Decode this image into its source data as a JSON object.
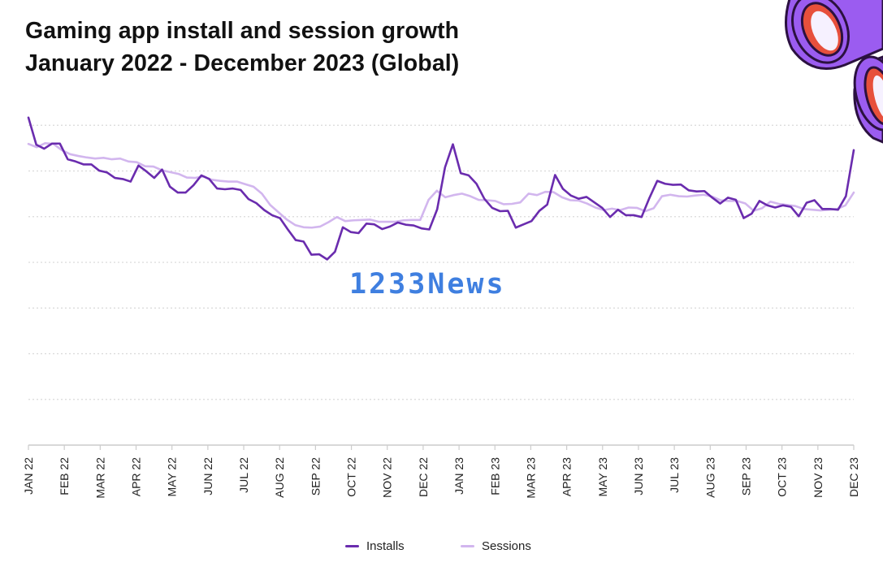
{
  "title": {
    "line1": "Gaming app install and session growth",
    "line2": "January 2022 - December 2023 (Global)"
  },
  "watermark": "1233News",
  "colors": {
    "installs": "#6a2cae",
    "sessions": "#d2b6ee",
    "grid": "#d9d9d9",
    "axis": "#cccccc",
    "decor_purple": "#9b5cf0",
    "decor_red": "#e7503c"
  },
  "legend": [
    {
      "label": "Installs",
      "color": "#6a2cae"
    },
    {
      "label": "Sessions",
      "color": "#d2b6ee"
    }
  ],
  "chart_data": {
    "type": "line",
    "title": "Gaming app install and session growth January 2022 - December 2023 (Global)",
    "xlabel": "",
    "ylabel": "",
    "ylim": [
      0,
      100
    ],
    "grid": true,
    "legend_position": "bottom",
    "x_ticks": [
      "JAN 22",
      "FEB 22",
      "MAR 22",
      "APR 22",
      "MAY 22",
      "JUN 22",
      "JUL 22",
      "AUG 22",
      "SEP 22",
      "OCT 22",
      "NOV 22",
      "DEC 22",
      "JAN 23",
      "FEB 23",
      "MAR 23",
      "APR 23",
      "MAY 23",
      "JUN 23",
      "JUL 23",
      "AUG 23",
      "SEP 23",
      "OCT 23",
      "NOV 23",
      "DEC 23"
    ],
    "series": [
      {
        "name": "Installs",
        "values": [
          89.6,
          82.2,
          81.1,
          82.5,
          82.5,
          78.2,
          77.6,
          76.8,
          76.8,
          75.1,
          74.6,
          73.1,
          72.8,
          72.1,
          76.5,
          74.9,
          73.1,
          75.4,
          70.7,
          69.1,
          69.1,
          71.1,
          73.8,
          72.8,
          70.2,
          70.0,
          70.2,
          69.8,
          67.3,
          66.2,
          64.3,
          62.9,
          62.1,
          59.0,
          56.1,
          55.7,
          52.1,
          52.2,
          50.8,
          52.9,
          59.6,
          58.3,
          58.0,
          60.6,
          60.4,
          59.1,
          59.8,
          60.9,
          60.3,
          60.1,
          59.3,
          59.0,
          64.5,
          76.0,
          82.3,
          74.4,
          73.8,
          71.5,
          67.4,
          64.9,
          64.0,
          64.1,
          59.5,
          60.4,
          61.3,
          64.1,
          65.8,
          73.9,
          70.1,
          68.3,
          67.4,
          67.9,
          66.4,
          64.9,
          62.4,
          64.4,
          62.9,
          62.9,
          62.4,
          67.6,
          72.3,
          71.5,
          71.2,
          71.3,
          69.7,
          69.4,
          69.5,
          67.7,
          66.1,
          67.7,
          67.1,
          62.1,
          63.3,
          66.8,
          65.6,
          65.0,
          65.6,
          65.2,
          62.6,
          66.3,
          67.0,
          64.6,
          64.6,
          64.4,
          68.1,
          80.7
        ]
      },
      {
        "name": "Sessions",
        "values": [
          82.4,
          81.5,
          82.6,
          82.4,
          80.7,
          79.6,
          79.1,
          78.7,
          78.4,
          78.6,
          78.2,
          78.4,
          77.6,
          77.4,
          76.3,
          76.2,
          75.2,
          74.7,
          74.2,
          73.2,
          73.1,
          73.5,
          72.6,
          72.3,
          72.1,
          72.1,
          71.4,
          70.7,
          68.8,
          65.7,
          63.7,
          61.7,
          60.2,
          59.6,
          59.5,
          59.8,
          61.0,
          62.4,
          61.3,
          61.5,
          61.6,
          61.7,
          61.1,
          61.1,
          61.1,
          61.5,
          61.6,
          61.6,
          67.1,
          69.6,
          67.8,
          68.4,
          68.8,
          68.1,
          67.1,
          67.0,
          66.8,
          65.9,
          66.0,
          66.4,
          68.8,
          68.4,
          69.3,
          69.2,
          67.8,
          67.0,
          66.9,
          66.1,
          65.0,
          64.3,
          64.7,
          64.3,
          65.0,
          64.9,
          64.0,
          64.8,
          68.1,
          68.5,
          68.1,
          68.0,
          68.3,
          68.5,
          68.0,
          67.0,
          66.8,
          66.8,
          66.1,
          64.1,
          64.8,
          66.6,
          66.0,
          65.7,
          65.4,
          64.6,
          64.4,
          64.2,
          64.4,
          64.6,
          65.6,
          69.1
        ]
      }
    ]
  }
}
